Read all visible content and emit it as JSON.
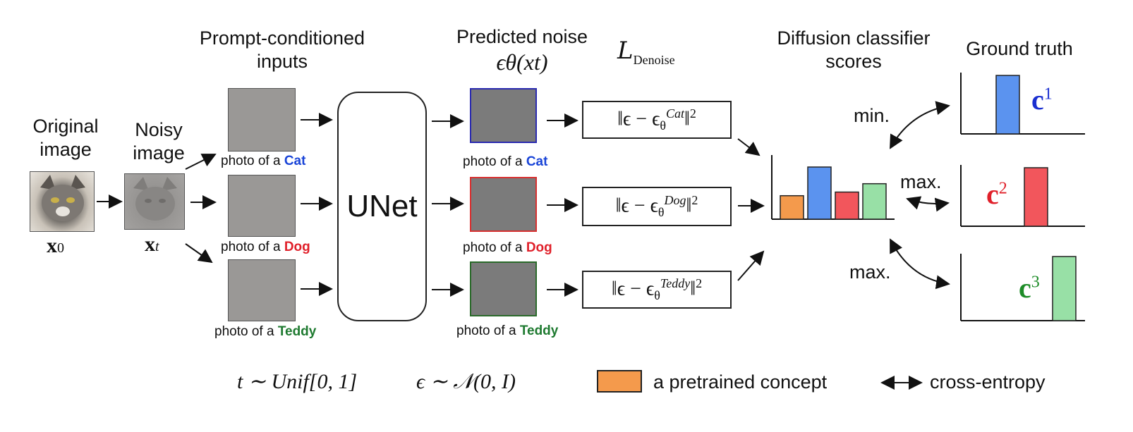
{
  "headers": {
    "original_image": "Original image",
    "noisy_image": "Noisy image",
    "prompt_inputs": "Prompt-conditioned inputs",
    "predicted_noise": "Predicted noise",
    "loss_title": "L",
    "loss_subscript": "Denoise",
    "classifier_scores": "Diffusion classifier scores",
    "ground_truth": "Ground truth"
  },
  "symbols": {
    "x0_main": "x",
    "x0_sub": "0",
    "xt_main": "x",
    "xt_sub": "t",
    "eps_theta": "ϵθ(xt)"
  },
  "unet_label": "UNet",
  "prompt_prefix": "photo of a",
  "classes": [
    {
      "name": "Cat",
      "color": "#1a45d8"
    },
    {
      "name": "Dog",
      "color": "#e0202a"
    },
    {
      "name": "Teddy",
      "color": "#1e7a30"
    }
  ],
  "noise_border_colors": [
    "#2a2ab0",
    "#d83030",
    "#2a6a2a"
  ],
  "loss_terms": [
    {
      "sup": "Cat"
    },
    {
      "sup": "Dog"
    },
    {
      "sup": "Teddy"
    }
  ],
  "scores_chart": {
    "bars": [
      {
        "value": 0.45,
        "color": "#f49a4c"
      },
      {
        "value": 1.0,
        "color": "#5b93ef"
      },
      {
        "value": 0.52,
        "color": "#f2565c"
      },
      {
        "value": 0.68,
        "color": "#98e0a6"
      }
    ]
  },
  "ground_truth_rows": [
    {
      "label": "c",
      "sup": "1",
      "color": "#1a2fd0",
      "bar_color": "#5b93ef",
      "arrow_label": "min.",
      "bar_position": 2
    },
    {
      "label": "c",
      "sup": "2",
      "color": "#e0202a",
      "bar_color": "#f2565c",
      "arrow_label": "max.",
      "bar_position": 3
    },
    {
      "label": "c",
      "sup": "3",
      "color": "#1e8c28",
      "bar_color": "#98e0a6",
      "arrow_label": "max.",
      "bar_position": 4
    }
  ],
  "footer": {
    "t_expr": "t ∼ Unif[0, 1]",
    "eps_expr": "ϵ ∼ 𝒩(0, I)",
    "legend_concept": "a pretrained concept",
    "legend_concept_color": "#f49a4c",
    "legend_arrow": "cross-entropy"
  }
}
